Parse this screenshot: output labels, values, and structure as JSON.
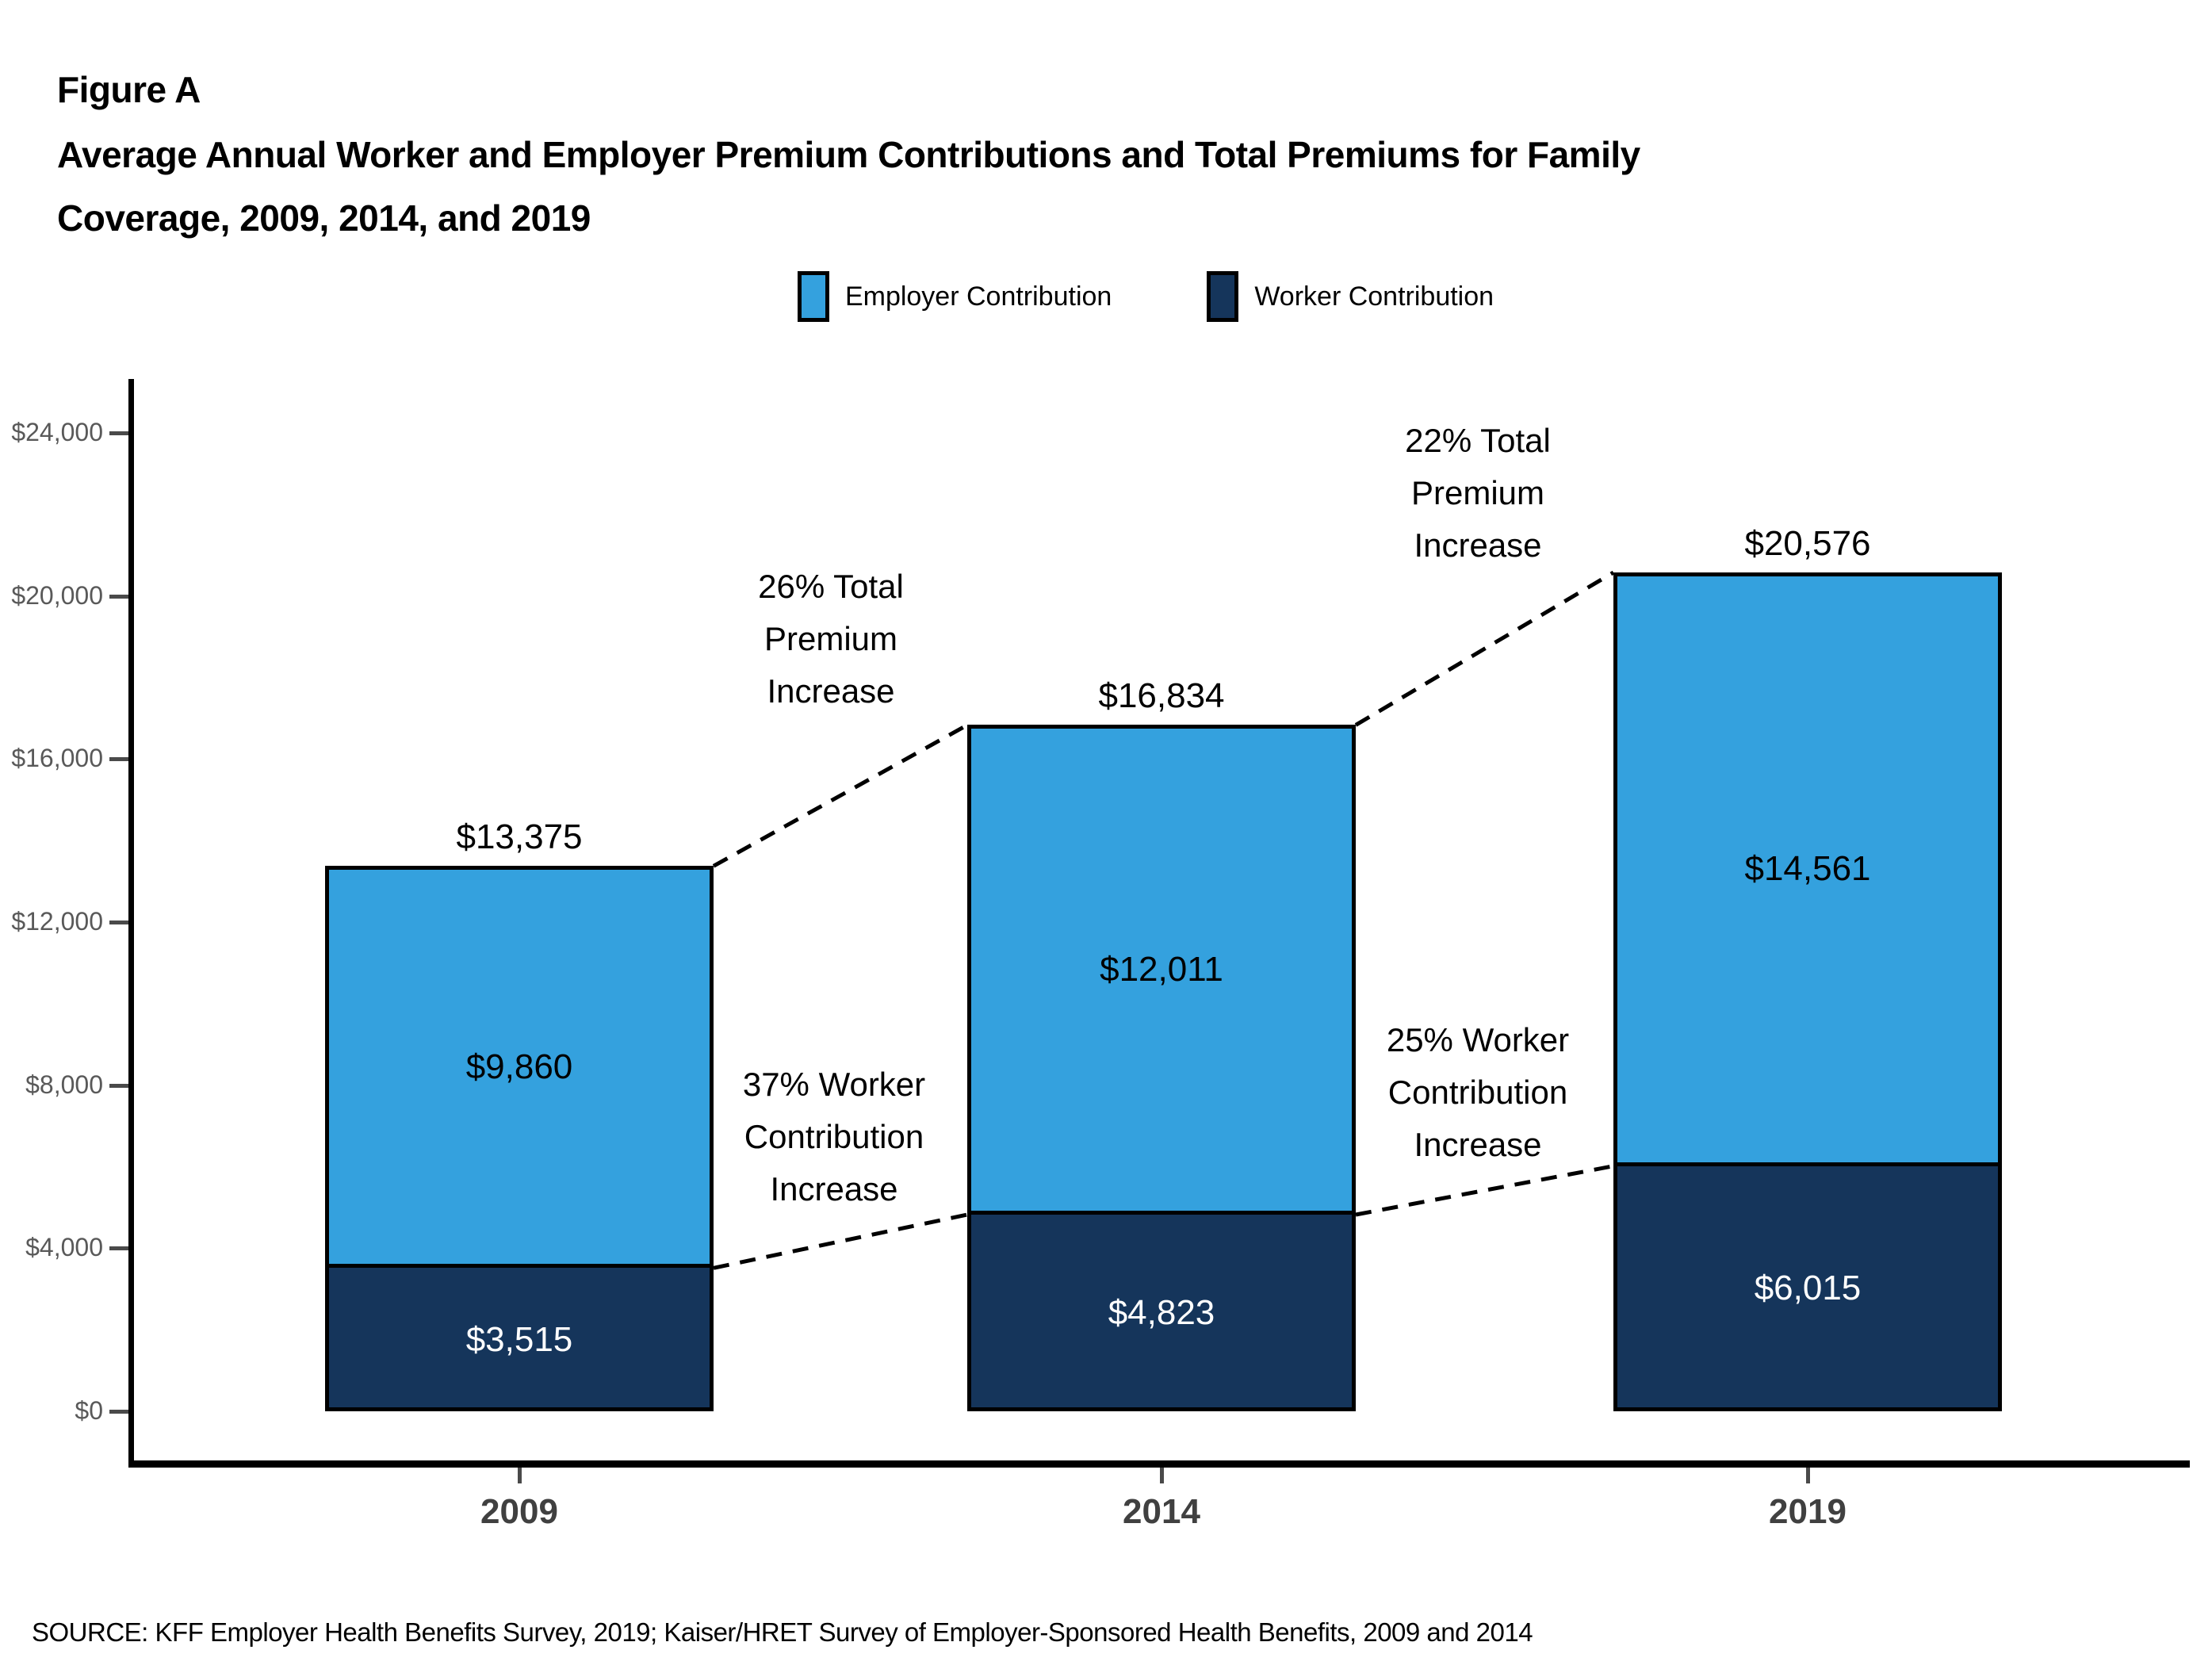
{
  "header": {
    "figure_label": "Figure A",
    "title_lines": [
      "Average Annual Worker and Employer Premium Contributions and Total Premiums for Family",
      "Coverage, 2009, 2014, and 2019"
    ]
  },
  "legend": {
    "items": [
      {
        "label": "Employer Contribution",
        "color": "#34A1DE"
      },
      {
        "label": "Worker Contribution",
        "color": "#15355B"
      }
    ]
  },
  "chart_data": {
    "type": "bar",
    "stacked": true,
    "title": "Figure A: Average Annual Worker and Employer Premium Contributions and Total Premiums for Family Coverage, 2009, 2014, and 2019",
    "categories": [
      "2009",
      "2014",
      "2019"
    ],
    "series": [
      {
        "name": "Worker Contribution",
        "color": "#15355B",
        "values": [
          3515,
          4823,
          6015
        ],
        "value_labels": [
          "$3,515",
          "$4,823",
          "$6,015"
        ],
        "label_color": "#FFFFFF"
      },
      {
        "name": "Employer Contribution",
        "color": "#34A1DE",
        "values": [
          9860,
          12011,
          14561
        ],
        "value_labels": [
          "$9,860",
          "$12,011",
          "$14,561"
        ],
        "label_color": "#000000"
      }
    ],
    "totals": {
      "values": [
        13375,
        16834,
        20576
      ],
      "labels": [
        "$13,375",
        "$16,834",
        "$20,576"
      ]
    },
    "y_axis": {
      "ticks": [
        0,
        4000,
        8000,
        12000,
        16000,
        20000,
        24000
      ],
      "tick_labels": [
        "$0",
        "$4,000",
        "$8,000",
        "$12,000",
        "$16,000",
        "$20,000",
        "$24,000"
      ],
      "range": [
        0,
        24000
      ],
      "currency": "$"
    },
    "annotations": [
      {
        "id": "total-premium-increase-2009-2014",
        "lines": [
          "26% Total",
          "Premium",
          "Increase"
        ]
      },
      {
        "id": "total-premium-increase-2014-2019",
        "lines": [
          "22% Total",
          "Premium",
          "Increase"
        ]
      },
      {
        "id": "worker-contribution-increase-2009-2014",
        "lines": [
          "37% Worker",
          "Contribution",
          "Increase"
        ]
      },
      {
        "id": "worker-contribution-increase-2014-2019",
        "lines": [
          "25% Worker",
          "Contribution",
          "Increase"
        ]
      }
    ],
    "legend_position": "top",
    "grid": false
  },
  "footer": {
    "source": "SOURCE: KFF Employer Health Benefits Survey, 2019; Kaiser/HRET Survey of Employer-Sponsored Health Benefits, 2009 and 2014"
  }
}
